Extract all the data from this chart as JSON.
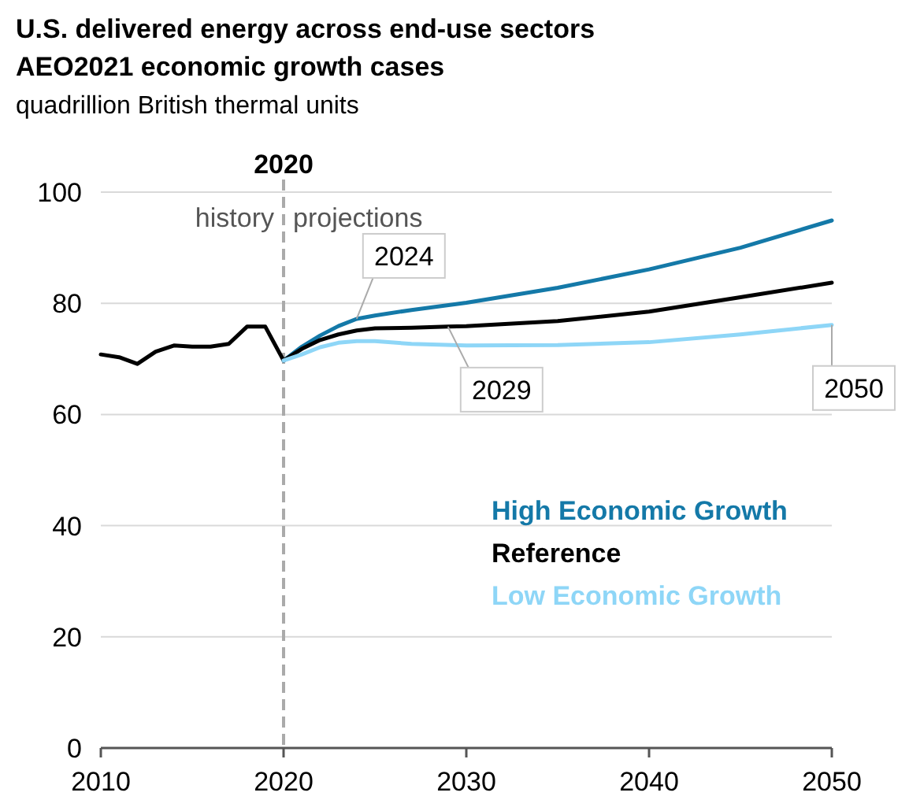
{
  "chart_data": {
    "type": "line",
    "title": "U.S. delivered energy across end-use sectors",
    "subtitle": "AEO2021 economic growth cases",
    "ylabel": "quadrillion British thermal units",
    "xlim": [
      2010,
      2050
    ],
    "xticks": [
      2010,
      2020,
      2030,
      2040,
      2050
    ],
    "ylim": [
      0,
      100
    ],
    "yticks": [
      0,
      20,
      40,
      60,
      80,
      100
    ],
    "grid": "y",
    "legend": "right",
    "line_style": "solid",
    "ref_lines": [
      {
        "axis": "x",
        "value": 2020,
        "label": "2020",
        "color": "#aaaaaa",
        "line_style": "dashed"
      }
    ],
    "annotations": [
      "history",
      "projections",
      {
        "text": "2024",
        "x": 2024,
        "y": 77.2
      },
      {
        "text": "2029",
        "x": 2029,
        "y": 75.8
      },
      {
        "text": "2050",
        "x": 2050,
        "y": 76.1
      }
    ],
    "series": [
      {
        "name": "High Economic Growth",
        "color": "#1479a8",
        "x": [
          2020,
          2021,
          2022,
          2023,
          2024,
          2025,
          2027,
          2030,
          2035,
          2040,
          2045,
          2050
        ],
        "values": [
          69.7,
          72.2,
          74.2,
          75.9,
          77.2,
          77.8,
          78.8,
          80.1,
          82.8,
          86.1,
          90,
          94.9
        ]
      },
      {
        "name": "Reference",
        "color": "#000000",
        "x": [
          2010,
          2011,
          2012,
          2013,
          2014,
          2015,
          2016,
          2017,
          2018,
          2019,
          2020,
          2021,
          2022,
          2023,
          2024,
          2025,
          2027,
          2029,
          2030,
          2035,
          2040,
          2045,
          2050
        ],
        "values": [
          70.8,
          70.3,
          69.1,
          71.3,
          72.4,
          72.2,
          72.2,
          72.7,
          75.8,
          75.8,
          69.7,
          71.8,
          73.4,
          74.4,
          75.1,
          75.5,
          75.6,
          75.8,
          75.9,
          76.8,
          78.5,
          81.1,
          83.7
        ]
      },
      {
        "name": "Low Economic Growth",
        "color": "#8ed6f7",
        "x": [
          2020,
          2021,
          2022,
          2023,
          2024,
          2025,
          2027,
          2030,
          2035,
          2040,
          2045,
          2050
        ],
        "values": [
          69.7,
          70.8,
          72.1,
          72.9,
          73.2,
          73.2,
          72.7,
          72.4,
          72.5,
          73,
          74.4,
          76.1
        ]
      }
    ]
  }
}
